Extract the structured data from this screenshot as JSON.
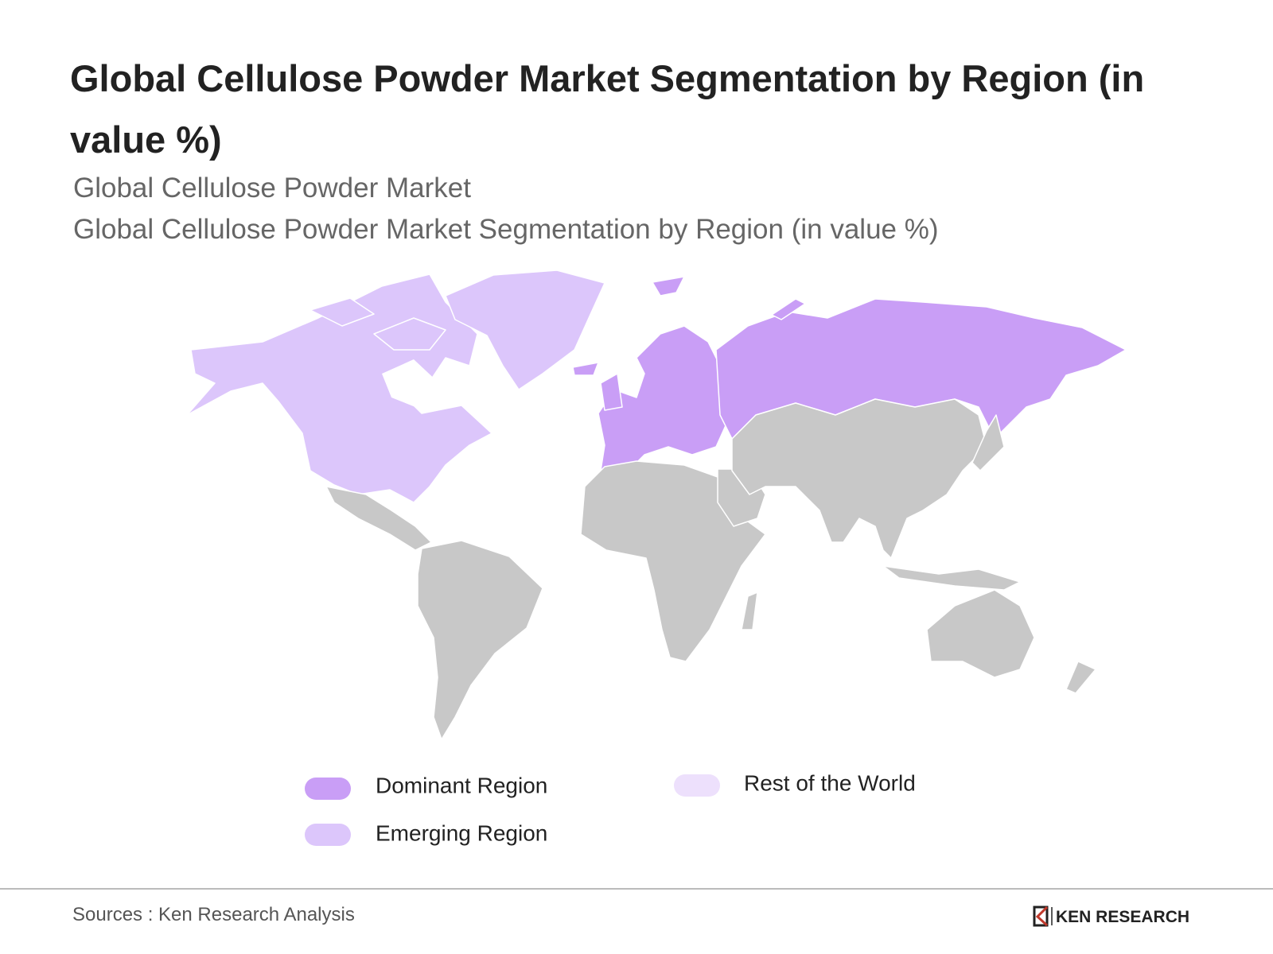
{
  "header": {
    "title_line1": "Global Cellulose Powder Market Segmentation by Region (in",
    "title_line2": "value %)",
    "subtitle1": "Global Cellulose Powder Market",
    "subtitle2": "Global Cellulose Powder Market Segmentation by Region (in value %)"
  },
  "legend": {
    "items": [
      {
        "name": "Dominant Region",
        "color": "#c99ef6"
      },
      {
        "name": "Emerging Region",
        "color": "#dcc6fb"
      },
      {
        "name": "Rest of the World",
        "color": "#ede0fc"
      }
    ]
  },
  "footer": {
    "source": "Sources : Ken Research Analysis",
    "logo": "KEN RESEARCH"
  }
}
